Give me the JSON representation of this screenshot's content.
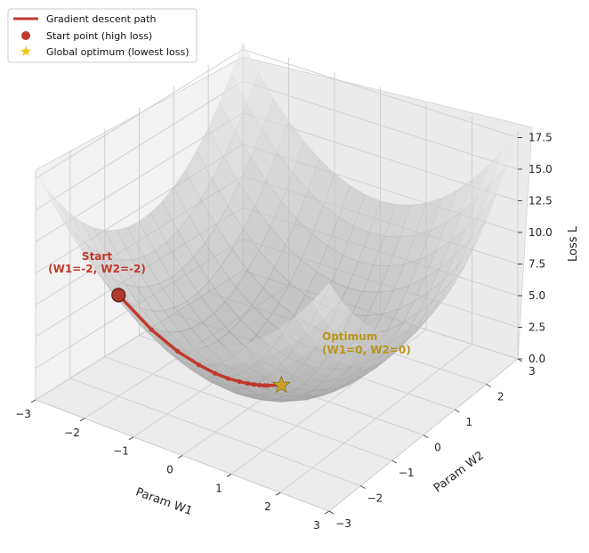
{
  "chart_data": {
    "type": "surface3d",
    "surface": {
      "function": "L = W1^2 + W2^2",
      "w1_range": [
        -3,
        3
      ],
      "w2_range": [
        -3,
        3
      ]
    },
    "path": {
      "name": "Gradient descent path",
      "points": [
        {
          "w1": -2.0,
          "w2": -2.0,
          "l": 8.0
        },
        {
          "w1": -1.6,
          "w2": -1.6,
          "l": 5.12
        },
        {
          "w1": -1.28,
          "w2": -1.28,
          "l": 3.28
        },
        {
          "w1": -1.02,
          "w2": -1.02,
          "l": 2.1
        },
        {
          "w1": -0.82,
          "w2": -0.82,
          "l": 1.34
        },
        {
          "w1": -0.66,
          "w2": -0.66,
          "l": 0.86
        },
        {
          "w1": -0.52,
          "w2": -0.52,
          "l": 0.55
        },
        {
          "w1": -0.42,
          "w2": -0.42,
          "l": 0.35
        },
        {
          "w1": -0.34,
          "w2": -0.34,
          "l": 0.23
        },
        {
          "w1": -0.27,
          "w2": -0.27,
          "l": 0.15
        },
        {
          "w1": -0.21,
          "w2": -0.21,
          "l": 0.09
        },
        {
          "w1": -0.17,
          "w2": -0.17,
          "l": 0.06
        },
        {
          "w1": 0.0,
          "w2": 0.0,
          "l": 0.0
        }
      ]
    },
    "start_point": {
      "w1": -2,
      "w2": -2,
      "l": 8,
      "name": "Start point (high loss)"
    },
    "optimum": {
      "w1": 0,
      "w2": 0,
      "l": 0,
      "name": "Global optimum (lowest loss)"
    },
    "xlabel": "Param W1",
    "ylabel": "Param W2",
    "zlabel": "Loss L",
    "xticks": [
      "−3",
      "−2",
      "−1",
      "0",
      "1",
      "2",
      "3"
    ],
    "yticks": [
      "−3",
      "−2",
      "−1",
      "0",
      "1",
      "2",
      "3"
    ],
    "zticks": [
      "0.0",
      "2.5",
      "5.0",
      "7.5",
      "10.0",
      "12.5",
      "15.0",
      "17.5"
    ],
    "zlim": [
      0,
      18
    ],
    "annotations": {
      "start_line1": "Start",
      "start_line2": "(W1=-2, W2=-2)",
      "optimum_line1": "Optimum",
      "optimum_line2": "(W1=0, W2=0)"
    },
    "legend": {
      "placement": "top-left",
      "entries": [
        {
          "label": "Gradient descent path",
          "color": "#c0392b",
          "marker": "line"
        },
        {
          "label": "Start point (high loss)",
          "color": "#c0392b",
          "marker": "circle"
        },
        {
          "label": "Global optimum (lowest loss)",
          "color": "#f1c40f",
          "marker": "star"
        }
      ]
    },
    "colors": {
      "path": "#c0392b",
      "start_annotation": "#c0392b",
      "optimum_annotation": "#b8961a",
      "optimum_marker": "#c9a227"
    },
    "grid": true
  }
}
